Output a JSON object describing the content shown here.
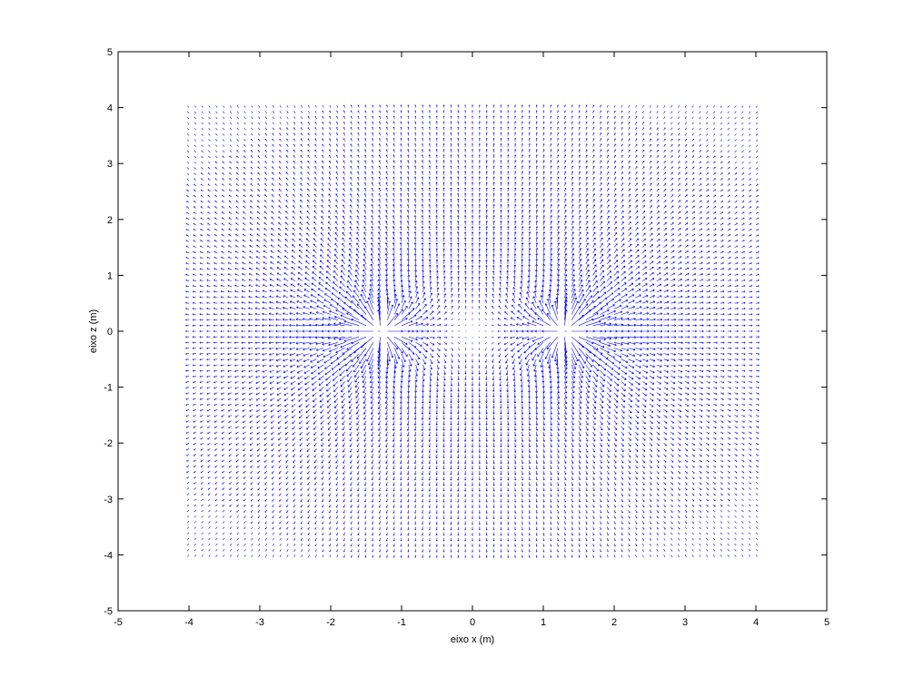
{
  "chart_data": {
    "type": "quiver",
    "title": "",
    "xlabel": "eixo x (m)",
    "ylabel": "eixo z (m)",
    "xlim": [
      -5,
      5
    ],
    "ylim": [
      -5,
      5
    ],
    "xticks": [
      -5,
      -4,
      -3,
      -2,
      -1,
      0,
      1,
      2,
      3,
      4,
      5
    ],
    "yticks": [
      -5,
      -4,
      -3,
      -2,
      -1,
      0,
      1,
      2,
      3,
      4,
      5
    ],
    "grid": false,
    "legend": "none",
    "field_region": {
      "x": [
        -4,
        4
      ],
      "z": [
        -4,
        4
      ],
      "samples_per_axis": 81
    },
    "sources": [
      {
        "x": -1.3,
        "z": 0
      },
      {
        "x": 1.3,
        "z": 0
      }
    ],
    "arrow_color": "#0000ff"
  }
}
